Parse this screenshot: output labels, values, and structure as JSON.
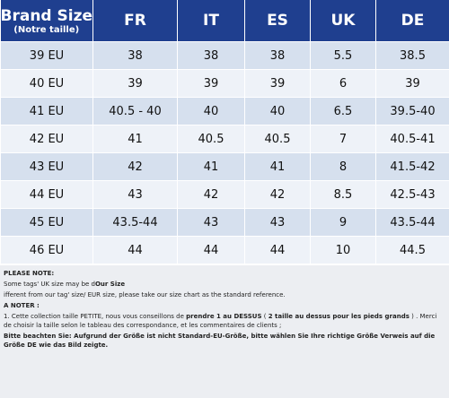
{
  "table": {
    "header": [
      "Brand Size",
      "FR",
      "IT",
      "ES",
      "UK",
      "DE"
    ],
    "header_sub": "(Notre taille)",
    "rows": [
      [
        "39 EU",
        "38",
        "38",
        "38",
        "5.5",
        "38.5"
      ],
      [
        "40 EU",
        "39",
        "39",
        "39",
        "6",
        "39"
      ],
      [
        "41 EU",
        "40.5 - 40",
        "40",
        "40",
        "6.5",
        "39.5-40"
      ],
      [
        "42 EU",
        "41",
        "40.5",
        "40.5",
        "7",
        "40.5-41"
      ],
      [
        "43 EU",
        "42",
        "41",
        "41",
        "8",
        "41.5-42"
      ],
      [
        "44 EU",
        "43",
        "42",
        "42",
        "8.5",
        "42.5-43"
      ],
      [
        "45 EU",
        "43.5-44",
        "43",
        "43",
        "9",
        "43.5-44"
      ],
      [
        "46 EU",
        "44",
        "44",
        "44",
        "10",
        "44.5"
      ]
    ]
  },
  "notes": [
    {
      "parts": [
        {
          "text": "PLEASE NOTE:",
          "bold": true
        }
      ]
    },
    {
      "parts": [
        {
          "text": "Some tags' UK size  may be d",
          "bold": false
        },
        {
          "text": "Our Size",
          "bold": true
        }
      ]
    },
    {
      "parts": [
        {
          "text": "ifferent from our tag' size/ EUR size, please take our size chart as the standard reference.",
          "bold": false
        }
      ]
    },
    {
      "parts": [
        {
          "text": "A NOTER :",
          "bold": true
        }
      ]
    },
    {
      "parts": [
        {
          "text": "1. Cette collection taille PETITE, nous vous conseillons de ",
          "bold": false
        },
        {
          "text": "prendre 1 au DESSUS",
          "bold": true
        },
        {
          "text": "  ( ",
          "bold": false
        },
        {
          "text": "2 taille au dessus pour les pieds grands",
          "bold": true
        },
        {
          "text": " ) .  Merci de choisir la taille selon le tableau des correspondance, et  les commentaires de clients ;",
          "bold": false
        }
      ]
    },
    {
      "parts": [
        {
          "text": "Bitte beachten Sie: Aufgrund der Größe ist nicht Standard-EU-Größe, bitte wählen Sie Ihre richtige Größe Verweis auf die Größe DE wie das Bild zeigte.",
          "bold": true
        }
      ]
    }
  ]
}
